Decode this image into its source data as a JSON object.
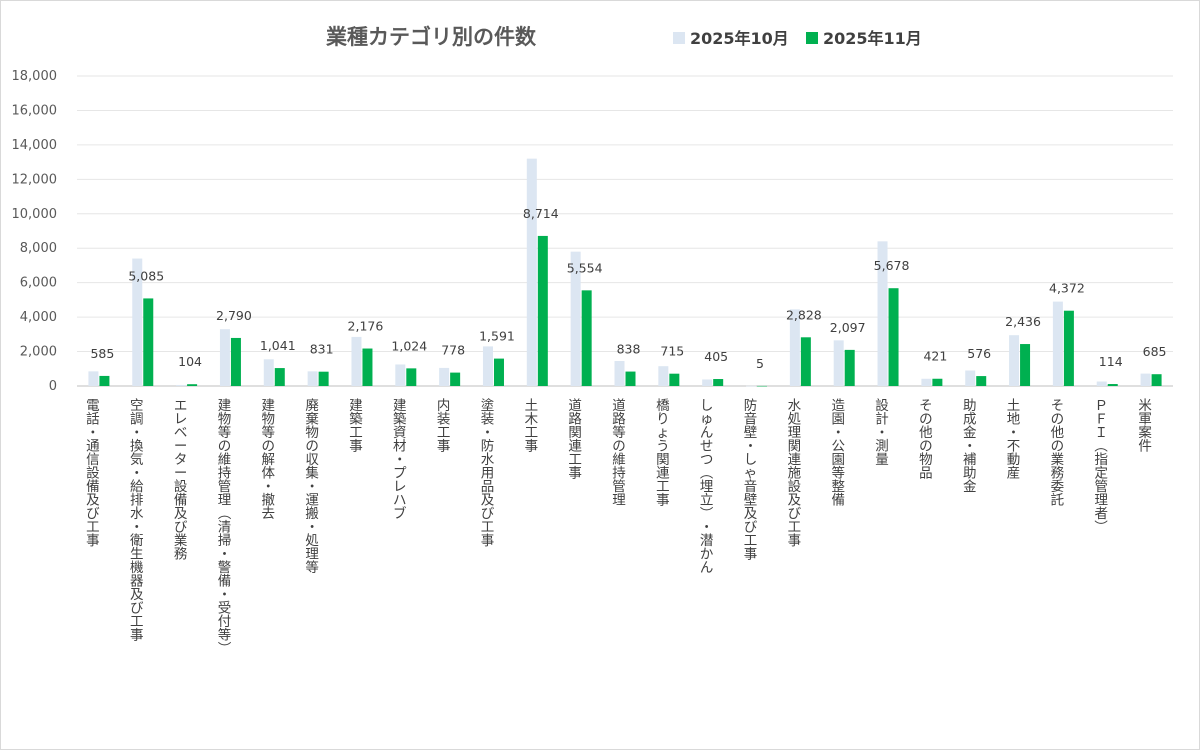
{
  "chart_data": {
    "type": "bar",
    "title": "業種カテゴリ別の件数",
    "colors": {
      "series1": "#dce6f2",
      "series2": "#00b050"
    },
    "legend_position": "top-right",
    "grid": true,
    "ylim": [
      0,
      18000
    ],
    "yticks": [
      "0",
      "2,000",
      "4,000",
      "6,000",
      "8,000",
      "10,000",
      "12,000",
      "14,000",
      "16,000",
      "18,000"
    ],
    "categories": [
      "電話・通信設備及び工事",
      "空調・換気・給排水・衛生機器及び工事",
      "エレベーター設備及び業務",
      "建物等の維持管理（清掃・警備・受付等）",
      "建物等の解体・撤去",
      "廃棄物の収集・運搬・処理等",
      "建築工事",
      "建築資材・プレハブ",
      "内装工事",
      "塗装・防水用品及び工事",
      "土木工事",
      "道路関連工事",
      "道路等の維持管理",
      "橋りょう関連工事",
      "しゅんせつ（埋立）・潜かん",
      "防音壁・しゃ音壁及び工事",
      "水処理関連施設及び工事",
      "造園・公園等整備",
      "設計・測量",
      "その他の物品",
      "助成金・補助金",
      "土地・不動産",
      "その他の業務委託",
      "ＰＦＩ（指定管理者）",
      "米軍案件"
    ],
    "series": [
      {
        "name": "2025年10月",
        "values": [
          850,
          7400,
          60,
          3300,
          1550,
          850,
          2850,
          1250,
          1050,
          2300,
          13200,
          7800,
          1450,
          1150,
          380,
          10,
          4450,
          2650,
          8400,
          420,
          900,
          2950,
          4900,
          260,
          720
        ]
      },
      {
        "name": "2025年11月",
        "values": [
          585,
          5085,
          104,
          2790,
          1041,
          831,
          2176,
          1024,
          778,
          1591,
          8714,
          5554,
          838,
          715,
          405,
          5,
          2828,
          2097,
          5678,
          421,
          576,
          2436,
          4372,
          114,
          685
        ],
        "labels": [
          "585",
          "5,085",
          "104",
          "2,790",
          "1,041",
          "831",
          "2,176",
          "1,024",
          "778",
          "1,591",
          "8,714",
          "5,554",
          "838",
          "715",
          "405",
          "5",
          "2,828",
          "2,097",
          "5,678",
          "421",
          "576",
          "2,436",
          "4,372",
          "114",
          "685"
        ]
      }
    ]
  }
}
